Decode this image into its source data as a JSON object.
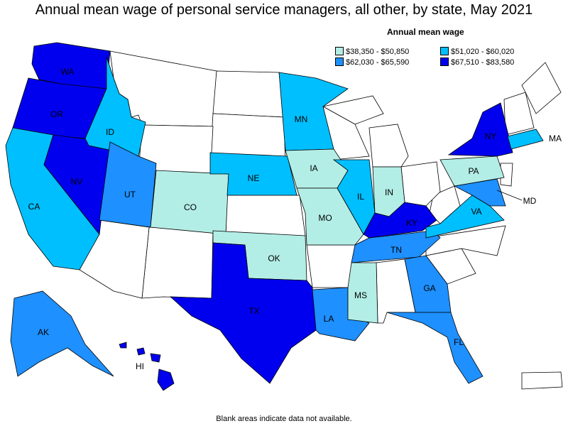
{
  "title": "Annual mean wage of personal service managers, all other, by state, May 2021",
  "legend": {
    "title": "Annual mean wage",
    "items": [
      {
        "range": "$38,350 - $50,850",
        "color": "#b3eee6"
      },
      {
        "range": "$51,020 - $60,020",
        "color": "#00bfff"
      },
      {
        "range": "$62,030 - $65,590",
        "color": "#1e90ff"
      },
      {
        "range": "$67,510 - $83,580",
        "color": "#0000ee"
      }
    ]
  },
  "footnote": "Blank areas indicate data not available.",
  "states": {
    "WA": {
      "label": "WA",
      "tier": 3
    },
    "OR": {
      "label": "OR",
      "tier": 3
    },
    "CA": {
      "label": "CA",
      "tier": 1
    },
    "NV": {
      "label": "NV",
      "tier": 3
    },
    "ID": {
      "label": "ID",
      "tier": 1
    },
    "UT": {
      "label": "UT",
      "tier": 2
    },
    "CO": {
      "label": "CO",
      "tier": 0
    },
    "NE": {
      "label": "NE",
      "tier": 1
    },
    "MN": {
      "label": "MN",
      "tier": 1
    },
    "IA": {
      "label": "IA",
      "tier": 0
    },
    "MO": {
      "label": "MO",
      "tier": 0
    },
    "IL": {
      "label": "IL",
      "tier": 1
    },
    "IN": {
      "label": "IN",
      "tier": 0
    },
    "KY": {
      "label": "KY",
      "tier": 3
    },
    "TN": {
      "label": "TN",
      "tier": 2
    },
    "OK": {
      "label": "OK",
      "tier": 0
    },
    "TX": {
      "label": "TX",
      "tier": 3
    },
    "LA": {
      "label": "LA",
      "tier": 2
    },
    "MS": {
      "label": "MS",
      "tier": 0
    },
    "GA": {
      "label": "GA",
      "tier": 2
    },
    "FL": {
      "label": "FL",
      "tier": 2
    },
    "VA": {
      "label": "VA",
      "tier": 1
    },
    "MD": {
      "label": "MD",
      "tier": 2
    },
    "PA": {
      "label": "PA",
      "tier": 0
    },
    "NY": {
      "label": "NY",
      "tier": 3
    },
    "MA": {
      "label": "MA",
      "tier": 1
    },
    "AK": {
      "label": "AK",
      "tier": 2
    },
    "HI": {
      "label": "HI",
      "tier": 3
    }
  }
}
